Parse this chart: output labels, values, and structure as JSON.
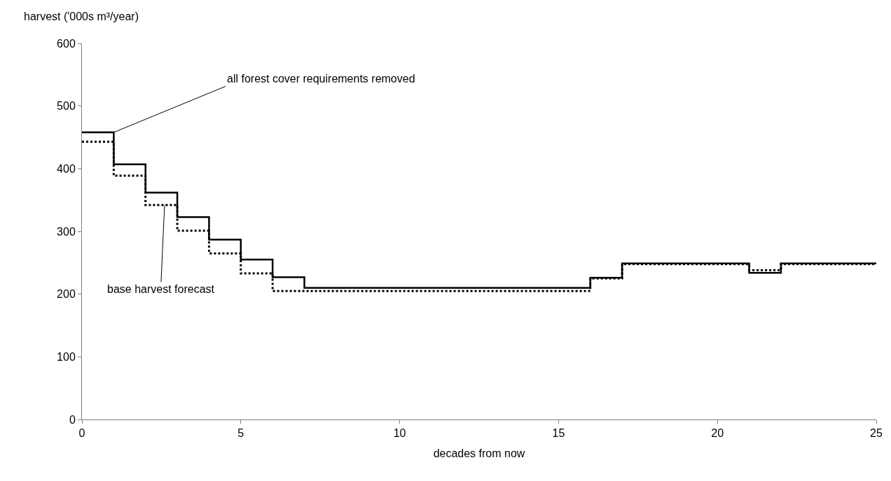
{
  "chart_data": {
    "type": "step",
    "x": [
      0,
      1,
      2,
      3,
      4,
      5,
      6,
      7,
      8,
      9,
      10,
      11,
      12,
      13,
      14,
      15,
      16,
      17,
      18,
      19,
      20,
      21,
      22,
      23,
      24,
      25
    ],
    "series": [
      {
        "color": "#000000",
        "line_style": "solid",
        "values": [
          458,
          407,
          362,
          323,
          287,
          255,
          227,
          210,
          210,
          210,
          210,
          210,
          210,
          210,
          210,
          210,
          226,
          249,
          249,
          249,
          249,
          234,
          249,
          249,
          249,
          249
        ]
      },
      {
        "color": "#000000",
        "line_style": "dotted",
        "values": [
          443,
          389,
          342,
          301,
          265,
          233,
          205,
          205,
          205,
          205,
          205,
          205,
          205,
          205,
          205,
          205,
          225,
          248,
          248,
          248,
          248,
          238,
          248,
          248,
          248,
          248
        ]
      }
    ],
    "xlabel": "decades from now",
    "ylabel": "harvest ('000s m³/year)",
    "xlim": [
      0,
      25
    ],
    "xticks": [
      0,
      5,
      10,
      15,
      20,
      25
    ],
    "ylim": [
      0,
      600
    ],
    "yticks": [
      0,
      100,
      200,
      300,
      400,
      500,
      600
    ],
    "marker": "none",
    "annotations": [
      {
        "text": "all forest cover requirements removed",
        "x": 1,
        "y": 458
      },
      {
        "text": "base harvest forecast",
        "x": 2.6,
        "y": 342
      }
    ]
  }
}
